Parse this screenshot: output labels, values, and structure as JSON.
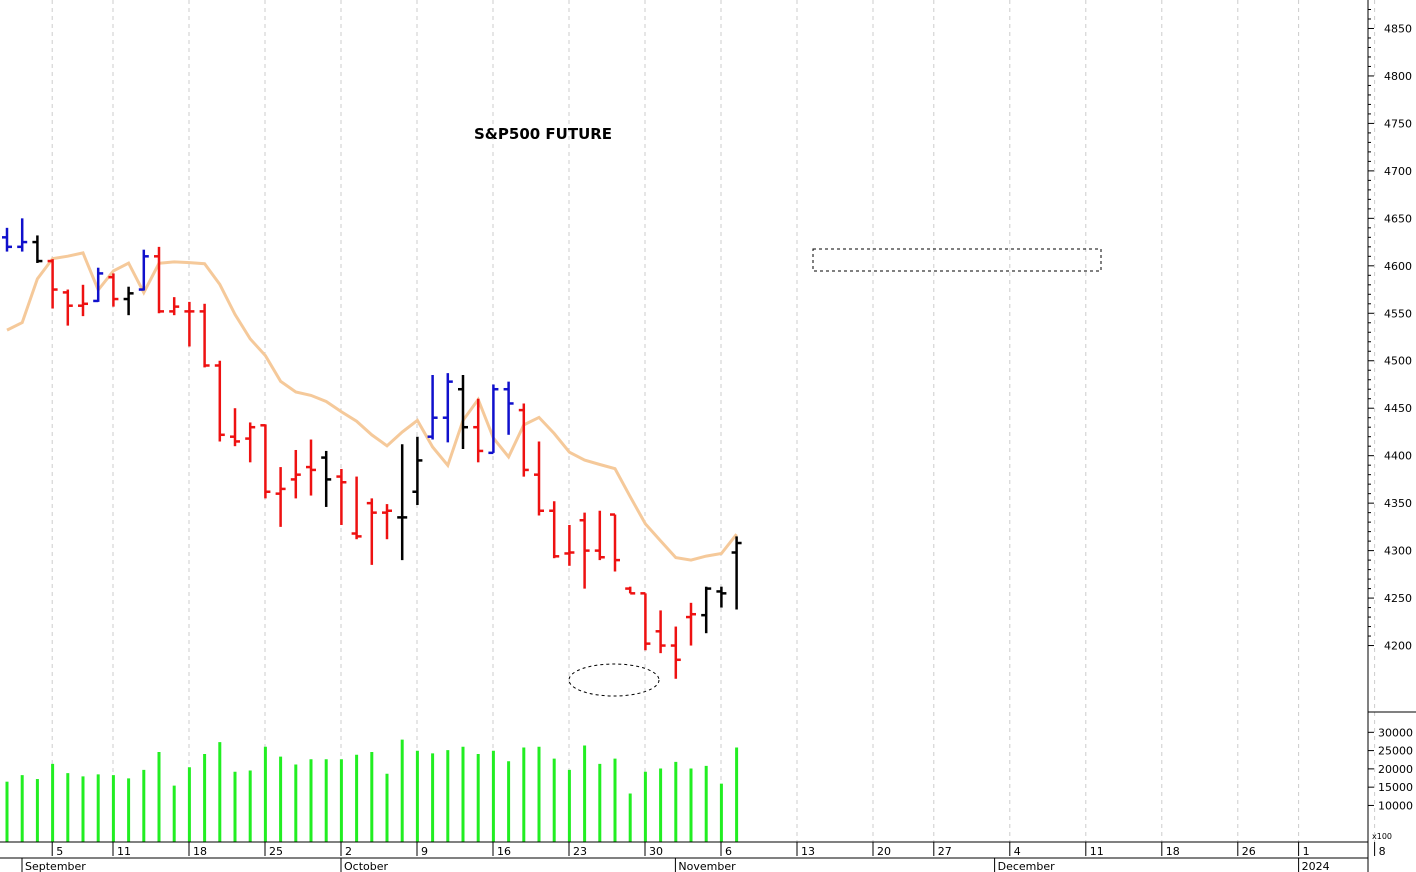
{
  "chart_data": {
    "type": "ohlc",
    "title": "S&P500 FUTURE",
    "colors": {
      "up_trend": "#1010cc",
      "down_trend": "#ee1111",
      "neutral": "#000000",
      "trailing_line": "#f5c99a",
      "volume": "#22ee22",
      "grid": "#cccccc"
    },
    "price_axis": {
      "range": [
        4130,
        4880
      ],
      "ticks": [
        4200,
        4250,
        4300,
        4350,
        4400,
        4450,
        4500,
        4550,
        4600,
        4650,
        4700,
        4750,
        4800,
        4850
      ]
    },
    "volume_axis": {
      "range": [
        0,
        32000
      ],
      "ticks": [
        10000,
        15000,
        20000,
        25000,
        30000
      ],
      "tick_labels": [
        "10000",
        "15000",
        "20000",
        "25000",
        "30000"
      ],
      "multiplier_label": "x100"
    },
    "x_day_ticks": [
      {
        "label": "5",
        "idx": 1
      },
      {
        "label": "11",
        "idx": 5
      },
      {
        "label": "18",
        "idx": 10
      },
      {
        "label": "25",
        "idx": 15
      },
      {
        "label": "2",
        "idx": 20
      },
      {
        "label": "9",
        "idx": 25
      },
      {
        "label": "16",
        "idx": 30
      },
      {
        "label": "23",
        "idx": 35
      },
      {
        "label": "30",
        "idx": 40
      },
      {
        "label": "6",
        "idx": 45
      },
      {
        "label": "13",
        "idx": 50
      },
      {
        "label": "20",
        "idx": 55
      },
      {
        "label": "27",
        "idx": 59
      },
      {
        "label": "4",
        "idx": 64
      },
      {
        "label": "11",
        "idx": 69
      },
      {
        "label": "18",
        "idx": 74
      },
      {
        "label": "26",
        "idx": 79
      },
      {
        "label": "1",
        "idx": 83
      },
      {
        "label": "8",
        "idx": 88
      }
    ],
    "x_month_labels": [
      {
        "label": "September",
        "idx": 0
      },
      {
        "label": "October",
        "idx": 20
      },
      {
        "label": "November",
        "idx": 42
      },
      {
        "label": "December",
        "idx": 63
      },
      {
        "label": "2024",
        "idx": 83
      }
    ],
    "bars": [
      {
        "o": 4630,
        "h": 4640,
        "l": 4615,
        "c": 4620,
        "col": "b"
      },
      {
        "o": 4620,
        "h": 4650,
        "l": 4615,
        "c": 4625,
        "col": "b"
      },
      {
        "o": 4625,
        "h": 4632,
        "l": 4603,
        "c": 4605,
        "col": "k"
      },
      {
        "o": 4605,
        "h": 4607,
        "l": 4555,
        "c": 4575,
        "col": "r"
      },
      {
        "o": 4572,
        "h": 4575,
        "l": 4537,
        "c": 4558,
        "col": "r"
      },
      {
        "o": 4558,
        "h": 4580,
        "l": 4547,
        "c": 4560,
        "col": "r"
      },
      {
        "o": 4563,
        "h": 4598,
        "l": 4562,
        "c": 4592,
        "col": "b"
      },
      {
        "o": 4588,
        "h": 4592,
        "l": 4557,
        "c": 4565,
        "col": "r"
      },
      {
        "o": 4565,
        "h": 4578,
        "l": 4548,
        "c": 4571,
        "col": "k"
      },
      {
        "o": 4575,
        "h": 4617,
        "l": 4574,
        "c": 4610,
        "col": "b"
      },
      {
        "o": 4610,
        "h": 4620,
        "l": 4550,
        "c": 4552,
        "col": "r"
      },
      {
        "o": 4552,
        "h": 4567,
        "l": 4548,
        "c": 4557,
        "col": "r"
      },
      {
        "o": 4552,
        "h": 4562,
        "l": 4515,
        "c": 4552,
        "col": "r"
      },
      {
        "o": 4552,
        "h": 4560,
        "l": 4493,
        "c": 4495,
        "col": "r"
      },
      {
        "o": 4495,
        "h": 4500,
        "l": 4415,
        "c": 4422,
        "col": "r"
      },
      {
        "o": 4420,
        "h": 4450,
        "l": 4410,
        "c": 4415,
        "col": "r"
      },
      {
        "o": 4418,
        "h": 4435,
        "l": 4393,
        "c": 4430,
        "col": "r"
      },
      {
        "o": 4432,
        "h": 4433,
        "l": 4355,
        "c": 4362,
        "col": "r"
      },
      {
        "o": 4360,
        "h": 4388,
        "l": 4325,
        "c": 4365,
        "col": "r"
      },
      {
        "o": 4375,
        "h": 4406,
        "l": 4355,
        "c": 4380,
        "col": "r"
      },
      {
        "o": 4388,
        "h": 4417,
        "l": 4358,
        "c": 4385,
        "col": "r"
      },
      {
        "o": 4398,
        "h": 4405,
        "l": 4346,
        "c": 4375,
        "col": "k"
      },
      {
        "o": 4378,
        "h": 4386,
        "l": 4327,
        "c": 4372,
        "col": "r"
      },
      {
        "o": 4318,
        "h": 4378,
        "l": 4312,
        "c": 4315,
        "col": "r"
      },
      {
        "o": 4350,
        "h": 4355,
        "l": 4285,
        "c": 4340,
        "col": "r"
      },
      {
        "o": 4340,
        "h": 4349,
        "l": 4312,
        "c": 4342,
        "col": "r"
      },
      {
        "o": 4335,
        "h": 4412,
        "l": 4290,
        "c": 4335,
        "col": "k"
      },
      {
        "o": 4362,
        "h": 4420,
        "l": 4348,
        "c": 4395,
        "col": "k"
      },
      {
        "o": 4420,
        "h": 4485,
        "l": 4417,
        "c": 4440,
        "col": "b"
      },
      {
        "o": 4440,
        "h": 4487,
        "l": 4414,
        "c": 4478,
        "col": "b"
      },
      {
        "o": 4470,
        "h": 4485,
        "l": 4407,
        "c": 4430,
        "col": "k"
      },
      {
        "o": 4430,
        "h": 4460,
        "l": 4393,
        "c": 4405,
        "col": "r"
      },
      {
        "o": 4403,
        "h": 4475,
        "l": 4403,
        "c": 4470,
        "col": "b"
      },
      {
        "o": 4470,
        "h": 4478,
        "l": 4422,
        "c": 4455,
        "col": "b"
      },
      {
        "o": 4448,
        "h": 4455,
        "l": 4378,
        "c": 4385,
        "col": "r"
      },
      {
        "o": 4380,
        "h": 4415,
        "l": 4337,
        "c": 4342,
        "col": "r"
      },
      {
        "o": 4342,
        "h": 4352,
        "l": 4292,
        "c": 4294,
        "col": "r"
      },
      {
        "o": 4297,
        "h": 4327,
        "l": 4284,
        "c": 4298,
        "col": "r"
      },
      {
        "o": 4332,
        "h": 4340,
        "l": 4260,
        "c": 4300,
        "col": "r"
      },
      {
        "o": 4300,
        "h": 4342,
        "l": 4290,
        "c": 4293,
        "col": "r"
      },
      {
        "o": 4338,
        "h": 4338,
        "l": 4278,
        "c": 4290,
        "col": "r"
      },
      {
        "o": 4260,
        "h": 4262,
        "l": 4255,
        "c": 4255,
        "col": "r"
      },
      {
        "o": 4255,
        "h": 4235,
        "l": 4195,
        "c": 4202,
        "col": "r"
      },
      {
        "o": 4215,
        "h": 4237,
        "l": 4192,
        "c": 4200,
        "col": "r"
      },
      {
        "o": 4200,
        "h": 4220,
        "l": 4165,
        "c": 4185,
        "col": "r"
      },
      {
        "o": 4230,
        "h": 4245,
        "l": 4200,
        "c": 4233,
        "col": "r"
      },
      {
        "o": 4232,
        "h": 4262,
        "l": 4213,
        "c": 4260,
        "col": "k"
      },
      {
        "o": 4257,
        "h": 4262,
        "l": 4240,
        "c": 4255,
        "col": "k"
      },
      {
        "o": 4298,
        "h": 4315,
        "l": 4238,
        "c": 4308,
        "col": "k"
      }
    ]
  }
}
